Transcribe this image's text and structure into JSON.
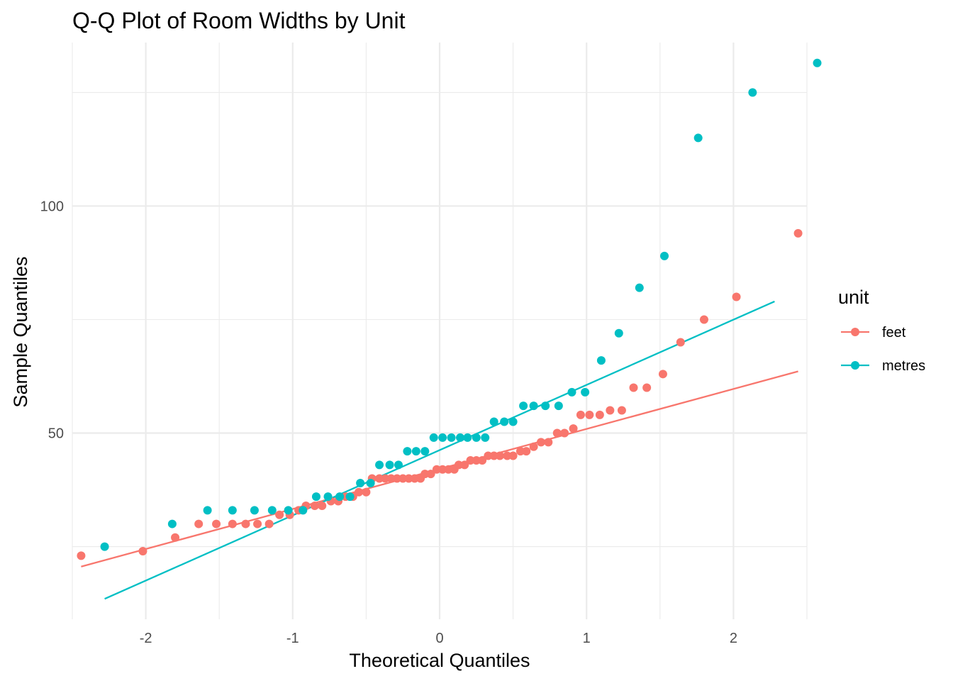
{
  "chart_data": {
    "type": "scatter",
    "title": "Q-Q Plot of Room Widths by Unit",
    "xlabel": "Theoretical Quantiles",
    "ylabel": "Sample Quantiles",
    "xlim": [
      -2.5,
      2.5
    ],
    "ylim": [
      9,
      136
    ],
    "x_ticks": [
      -2,
      -1,
      0,
      1,
      2
    ],
    "x_tick_labels": [
      "-2",
      "-1",
      "0",
      "1",
      "2"
    ],
    "y_ticks": [
      50,
      100
    ],
    "y_tick_labels": [
      "50",
      "100"
    ],
    "y_minor_ticks": [
      25,
      75,
      125
    ],
    "grid": true,
    "legend": {
      "title": "unit",
      "position": "right"
    },
    "series": [
      {
        "name": "feet",
        "color": "#F8766D",
        "points": [
          [
            -2.44,
            23.0
          ],
          [
            -2.02,
            24.0
          ],
          [
            -1.8,
            27.0
          ],
          [
            -1.64,
            30.0
          ],
          [
            -1.52,
            30.0
          ],
          [
            -1.41,
            30.0
          ],
          [
            -1.32,
            30.0
          ],
          [
            -1.24,
            30.0
          ],
          [
            -1.16,
            30.0
          ],
          [
            -1.09,
            32.0
          ],
          [
            -1.02,
            32.0
          ],
          [
            -0.96,
            33.0
          ],
          [
            -0.91,
            34.0
          ],
          [
            -0.85,
            34.0
          ],
          [
            -0.8,
            34.0
          ],
          [
            -0.74,
            35.0
          ],
          [
            -0.69,
            35.0
          ],
          [
            -0.64,
            36.0
          ],
          [
            -0.59,
            36.0
          ],
          [
            -0.55,
            37.0
          ],
          [
            -0.5,
            37.0
          ],
          [
            -0.46,
            40.0
          ],
          [
            -0.41,
            40.0
          ],
          [
            -0.37,
            40.0
          ],
          [
            -0.33,
            40.0
          ],
          [
            -0.29,
            40.0
          ],
          [
            -0.25,
            40.0
          ],
          [
            -0.21,
            40.0
          ],
          [
            -0.17,
            40.0
          ],
          [
            -0.13,
            40.0
          ],
          [
            -0.1,
            41.0
          ],
          [
            -0.06,
            41.0
          ],
          [
            -0.02,
            42.0
          ],
          [
            0.02,
            42.0
          ],
          [
            0.06,
            42.0
          ],
          [
            0.1,
            42.0
          ],
          [
            0.13,
            43.0
          ],
          [
            0.17,
            43.0
          ],
          [
            0.21,
            44.0
          ],
          [
            0.25,
            44.0
          ],
          [
            0.29,
            44.0
          ],
          [
            0.33,
            45.0
          ],
          [
            0.37,
            45.0
          ],
          [
            0.41,
            45.0
          ],
          [
            0.46,
            45.0
          ],
          [
            0.5,
            45.0
          ],
          [
            0.55,
            46.0
          ],
          [
            0.59,
            46.0
          ],
          [
            0.64,
            47.0
          ],
          [
            0.69,
            48.0
          ],
          [
            0.74,
            48.0
          ],
          [
            0.8,
            50.0
          ],
          [
            0.85,
            50.0
          ],
          [
            0.91,
            51.0
          ],
          [
            0.96,
            54.0
          ],
          [
            1.02,
            54.0
          ],
          [
            1.09,
            54.0
          ],
          [
            1.16,
            55.0
          ],
          [
            1.24,
            55.0
          ],
          [
            1.32,
            60.0
          ],
          [
            1.41,
            60.0
          ],
          [
            1.52,
            63.0
          ],
          [
            1.64,
            70.0
          ],
          [
            1.8,
            75.0
          ],
          [
            2.02,
            80.0
          ],
          [
            2.44,
            94.0
          ]
        ],
        "fit_line": [
          [
            -2.44,
            20.6
          ],
          [
            2.44,
            63.6
          ]
        ]
      },
      {
        "name": "metres",
        "color": "#00BFC4",
        "points": [
          [
            -2.28,
            25.0
          ],
          [
            -1.82,
            30.0
          ],
          [
            -1.58,
            33.0
          ],
          [
            -1.41,
            33.0
          ],
          [
            -1.26,
            33.0
          ],
          [
            -1.14,
            33.0
          ],
          [
            -1.03,
            33.0
          ],
          [
            -0.93,
            33.0
          ],
          [
            -0.84,
            36.0
          ],
          [
            -0.76,
            36.0
          ],
          [
            -0.68,
            36.0
          ],
          [
            -0.61,
            36.0
          ],
          [
            -0.54,
            39.0
          ],
          [
            -0.47,
            39.0
          ],
          [
            -0.41,
            43.0
          ],
          [
            -0.34,
            43.0
          ],
          [
            -0.28,
            43.0
          ],
          [
            -0.22,
            46.0
          ],
          [
            -0.16,
            46.0
          ],
          [
            -0.1,
            46.0
          ],
          [
            -0.04,
            49.0
          ],
          [
            0.02,
            49.0
          ],
          [
            0.08,
            49.0
          ],
          [
            0.14,
            49.0
          ],
          [
            0.19,
            49.0
          ],
          [
            0.25,
            49.0
          ],
          [
            0.31,
            49.0
          ],
          [
            0.37,
            52.5
          ],
          [
            0.44,
            52.5
          ],
          [
            0.5,
            52.5
          ],
          [
            0.57,
            56.0
          ],
          [
            0.64,
            56.0
          ],
          [
            0.72,
            56.0
          ],
          [
            0.81,
            56.0
          ],
          [
            0.9,
            59.0
          ],
          [
            0.99,
            59.0
          ],
          [
            1.1,
            66.0
          ],
          [
            1.22,
            72.0
          ],
          [
            1.36,
            82.0
          ],
          [
            1.53,
            89.0
          ],
          [
            1.76,
            115.0
          ],
          [
            2.13,
            125.0
          ],
          [
            2.57,
            131.5
          ]
        ],
        "fit_line": [
          [
            -2.28,
            13.5
          ],
          [
            2.28,
            79.0
          ]
        ]
      }
    ]
  }
}
